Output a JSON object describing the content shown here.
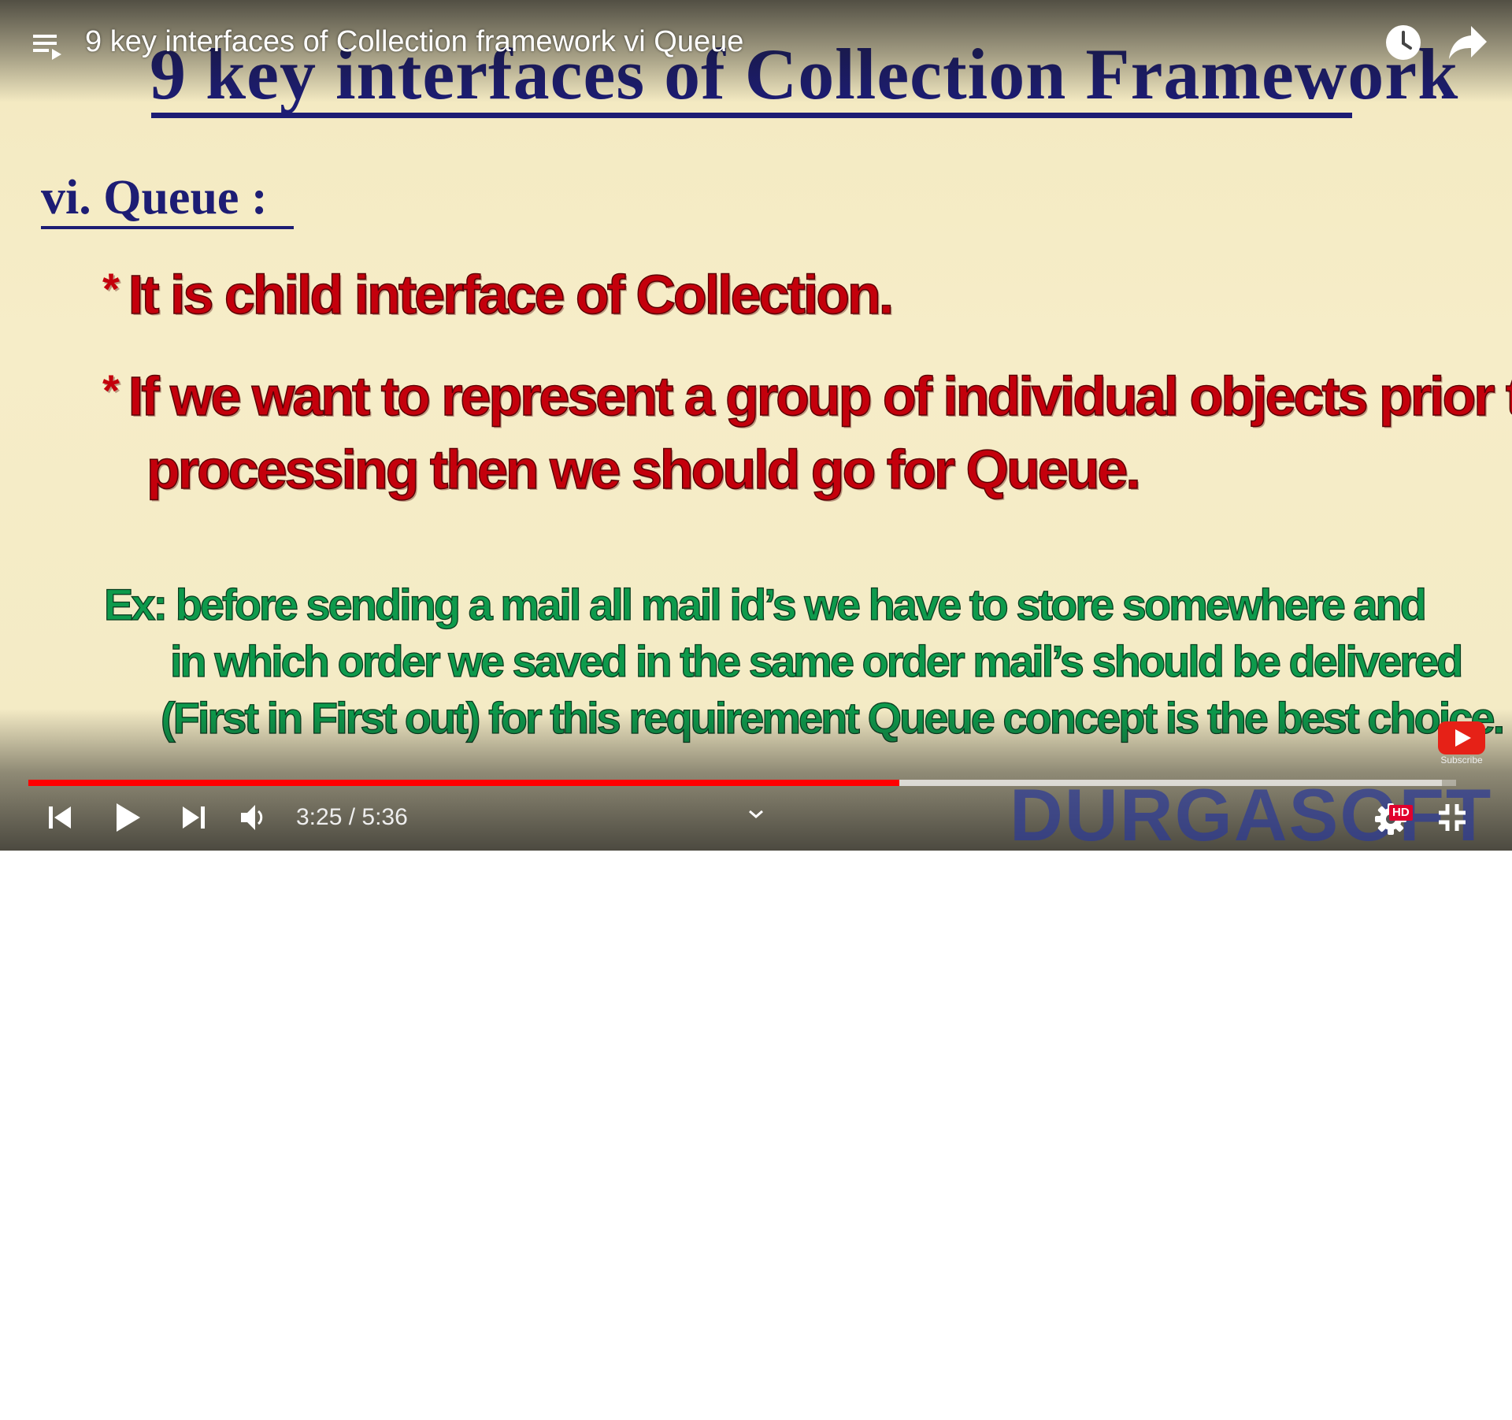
{
  "video_title": "9 key interfaces of Collection framework vi Queue",
  "slide": {
    "title": "9 key interfaces of Collection Framework",
    "section_heading": "vi. Queue :",
    "bullet_marker": "*",
    "bullet_1": "It is child interface of Collection.",
    "bullet_2_line_1": "If we want to represent a group of individual objects prior to",
    "bullet_2_line_2": "processing then we should go for Queue.",
    "example_line_1": "Ex: before sending a mail all mail id’s we have to store  somewhere and",
    "example_line_2": "in which order we saved in the same order mail’s should be delivered",
    "example_line_3": "(First in First out) for this requirement Queue concept is the best choice."
  },
  "watermark": {
    "subscribe_label": "Subscribe",
    "brand": "DURGASOFT"
  },
  "controls": {
    "current_time": "3:25",
    "separator": " / ",
    "duration": "5:36",
    "quality_badge": "HD",
    "progress_played_fraction": 0.61,
    "progress_buffered_fraction": 0.99
  },
  "colors": {
    "title": "#1d1d74",
    "bullet_text": "#c4000c",
    "example_text": "#0e9a4c",
    "progress_played": "#ff0000",
    "hd_badge": "#e1002d"
  },
  "icons": {
    "playlist": "playlist-icon",
    "watch_later": "clock-icon",
    "share": "share-arrow-icon",
    "previous": "skip-previous-icon",
    "play": "play-icon",
    "next": "skip-next-icon",
    "volume": "volume-icon",
    "chapters": "chevron-down-icon",
    "settings": "gear-icon",
    "fullscreen_exit": "exit-fullscreen-icon",
    "subscribe": "youtube-subscribe-icon"
  }
}
